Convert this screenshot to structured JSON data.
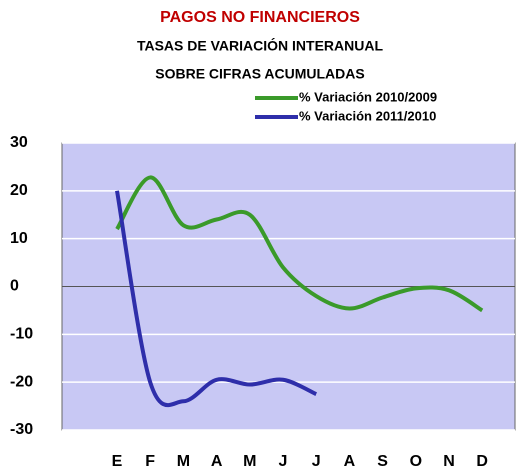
{
  "chart_data": {
    "type": "line",
    "title": "PAGOS NO FINANCIEROS",
    "subtitle": [
      "TASAS DE VARIACIÓN INTERANUAL",
      "SOBRE CIFRAS ACUMULADAS"
    ],
    "categories": [
      "E",
      "F",
      "M",
      "A",
      "M",
      "J",
      "J",
      "A",
      "S",
      "O",
      "N",
      "D"
    ],
    "series": [
      {
        "name": "% Variación 2010/2009",
        "color": "#3a9a2a",
        "values": [
          12,
          22.8,
          12.8,
          14,
          15,
          4,
          -2,
          -4.6,
          -2.3,
          -0.4,
          -0.8,
          -5
        ]
      },
      {
        "name": "% Variación 2011/2010",
        "color": "#2e2eaa",
        "values": [
          20,
          -20,
          -24,
          -19.5,
          -20.5,
          -19.5,
          -22.5,
          null,
          null,
          null,
          null,
          null
        ]
      }
    ],
    "ylim": [
      -30,
      30
    ],
    "yticks": [
      -30,
      -20,
      -10,
      0,
      10,
      20,
      30
    ],
    "grid": true,
    "legend": "top-right"
  }
}
